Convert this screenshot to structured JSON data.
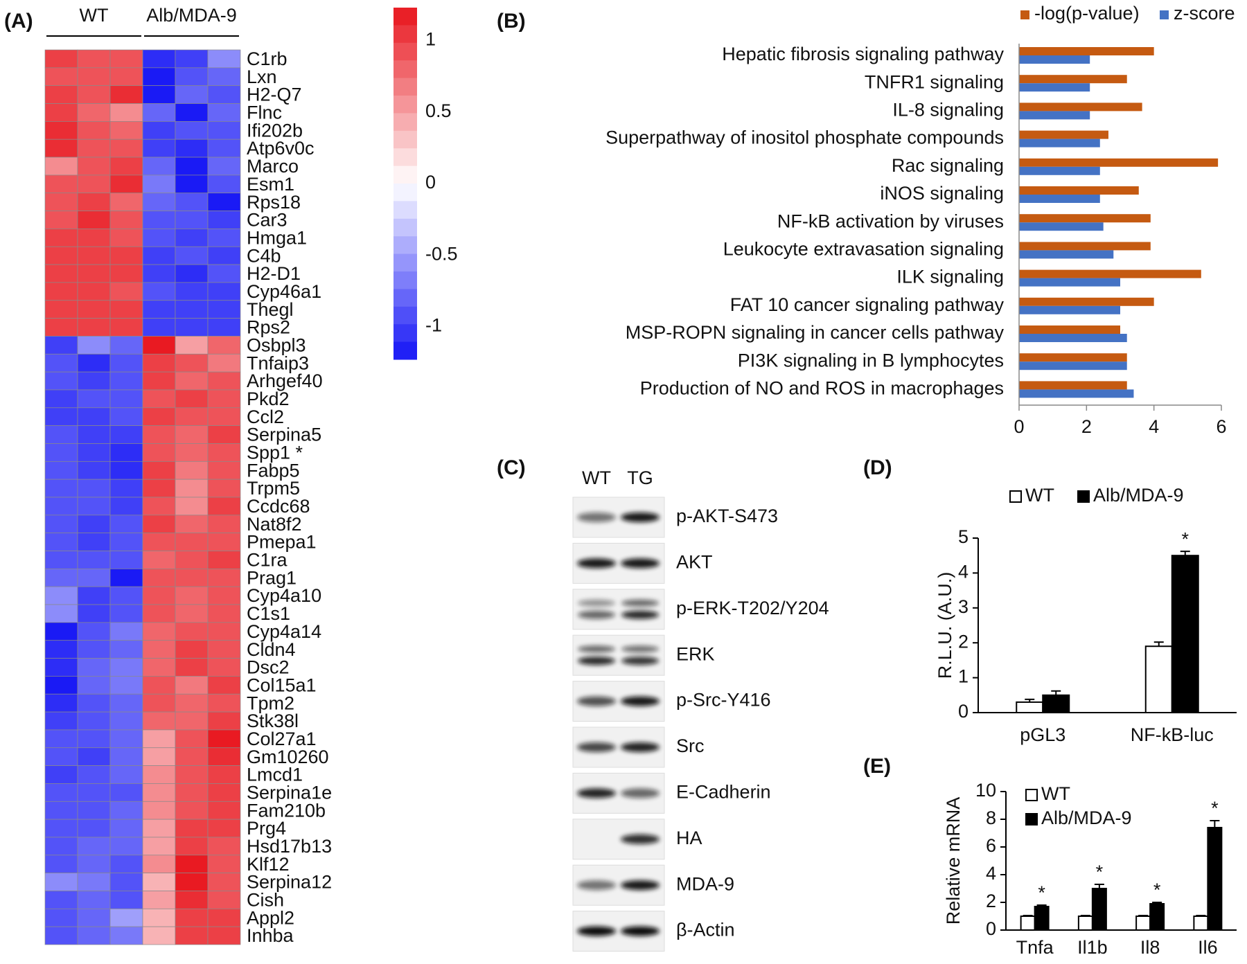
{
  "panel_labels": [
    "(A)",
    "(B)",
    "(C)",
    "(D)",
    "(E)"
  ],
  "blot": {
    "columns": [
      "WT",
      "TG"
    ],
    "rows": [
      "p-AKT-S473",
      "AKT",
      "p-ERK-T202/Y204",
      "ERK",
      "p-Src-Y416",
      "Src",
      "E-Cadherin",
      "HA",
      "MDA-9",
      "β-Actin"
    ]
  },
  "chart_data": [
    {
      "type": "heatmap",
      "column_groups": [
        "WT",
        "Alb/MDA-9"
      ],
      "rows": [
        "C1rb",
        "Lxn",
        "H2-Q7",
        "Flnc",
        "Ifi202b",
        "Atp6v0c",
        "Marco",
        "Esm1",
        "Rps18",
        "Car3",
        "Hmga1",
        "C4b",
        "H2-D1",
        "Cyp46a1",
        "Thegl",
        "Rps2",
        "Osbpl3",
        "Tnfaip3",
        "Arhgef40",
        "Pkd2",
        "Ccl2",
        "Serpina5",
        "Spp1 *",
        "Fabp5",
        "Trpm5",
        "Ccdc68",
        "Nat8f2",
        "Pmepa1",
        "C1ra",
        "Prag1",
        "Cyp4a10",
        "C1s1",
        "Cyp4a14",
        "Cldn4",
        "Dsc2",
        "Col15a1",
        "Tpm2",
        "Stk38l",
        "Col27a1",
        "Gm10260",
        "Lmcd1",
        "Serpina1e",
        "Fam210b",
        "Prg4",
        "Hsd17b13",
        "Klf12",
        "Serpina12",
        "Cish",
        "Appl2",
        "Inhba"
      ],
      "values": [
        [
          1.0,
          0.9,
          0.9,
          -1.1,
          -1.0,
          -0.6
        ],
        [
          0.9,
          0.9,
          0.9,
          -1.2,
          -0.9,
          -0.8
        ],
        [
          1.0,
          0.9,
          1.1,
          -1.2,
          -0.8,
          -0.9
        ],
        [
          1.0,
          0.8,
          0.6,
          -0.8,
          -1.2,
          -0.8
        ],
        [
          1.1,
          0.9,
          0.8,
          -1.0,
          -0.9,
          -0.9
        ],
        [
          1.1,
          0.9,
          0.9,
          -1.0,
          -1.1,
          -0.9
        ],
        [
          0.6,
          0.9,
          1.0,
          -0.8,
          -1.2,
          -0.8
        ],
        [
          0.9,
          0.9,
          1.1,
          -0.7,
          -1.2,
          -0.9
        ],
        [
          0.9,
          1.0,
          0.8,
          -0.8,
          -0.9,
          -1.2
        ],
        [
          0.9,
          1.1,
          0.9,
          -0.9,
          -0.9,
          -1.0
        ],
        [
          1.0,
          1.0,
          0.9,
          -0.9,
          -1.0,
          -0.9
        ],
        [
          1.0,
          1.0,
          1.0,
          -1.0,
          -0.9,
          -1.0
        ],
        [
          1.0,
          1.0,
          1.0,
          -1.0,
          -1.1,
          -0.9
        ],
        [
          1.0,
          1.0,
          0.9,
          -0.9,
          -1.0,
          -1.0
        ],
        [
          1.0,
          1.0,
          1.0,
          -1.0,
          -1.0,
          -1.0
        ],
        [
          1.0,
          1.0,
          1.0,
          -1.0,
          -1.0,
          -1.0
        ],
        [
          -1.0,
          -0.6,
          -0.8,
          1.2,
          0.5,
          0.8
        ],
        [
          -0.9,
          -1.1,
          -0.9,
          1.0,
          0.9,
          0.7
        ],
        [
          -0.9,
          -1.0,
          -0.9,
          1.0,
          0.8,
          0.9
        ],
        [
          -1.0,
          -0.9,
          -0.9,
          0.9,
          1.0,
          0.9
        ],
        [
          -1.0,
          -1.0,
          -0.9,
          1.0,
          0.9,
          0.9
        ],
        [
          -0.9,
          -1.0,
          -1.0,
          0.9,
          0.8,
          1.0
        ],
        [
          -0.9,
          -1.0,
          -1.1,
          0.9,
          0.8,
          0.9
        ],
        [
          -0.9,
          -1.0,
          -1.1,
          1.0,
          0.7,
          0.9
        ],
        [
          -0.9,
          -0.9,
          -1.0,
          1.0,
          0.6,
          0.9
        ],
        [
          -0.9,
          -0.9,
          -1.0,
          0.9,
          0.6,
          1.0
        ],
        [
          -0.9,
          -1.0,
          -0.9,
          1.0,
          0.8,
          0.9
        ],
        [
          -0.9,
          -1.0,
          -0.9,
          0.9,
          0.9,
          0.9
        ],
        [
          -0.9,
          -0.9,
          -0.9,
          0.8,
          0.9,
          1.0
        ],
        [
          -0.8,
          -0.8,
          -1.2,
          0.9,
          0.9,
          0.9
        ],
        [
          -0.6,
          -1.0,
          -0.9,
          0.9,
          0.8,
          0.9
        ],
        [
          -0.6,
          -1.0,
          -0.9,
          0.9,
          0.8,
          0.9
        ],
        [
          -1.2,
          -0.9,
          -0.7,
          0.8,
          0.9,
          0.9
        ],
        [
          -1.1,
          -0.9,
          -0.8,
          0.8,
          1.0,
          0.9
        ],
        [
          -1.1,
          -0.8,
          -0.7,
          0.8,
          1.0,
          0.9
        ],
        [
          -1.2,
          -0.8,
          -0.7,
          0.9,
          0.7,
          1.0
        ],
        [
          -1.1,
          -0.9,
          -0.8,
          0.9,
          0.8,
          0.9
        ],
        [
          -1.0,
          -0.9,
          -0.8,
          0.8,
          0.8,
          1.0
        ],
        [
          -0.9,
          -0.9,
          -0.8,
          0.5,
          0.9,
          1.2
        ],
        [
          -0.9,
          -1.0,
          -0.8,
          0.5,
          0.9,
          1.1
        ],
        [
          -1.0,
          -0.9,
          -0.8,
          0.6,
          0.9,
          1.0
        ],
        [
          -0.9,
          -0.9,
          -0.9,
          0.6,
          0.9,
          1.0
        ],
        [
          -0.9,
          -0.9,
          -0.8,
          0.6,
          0.9,
          1.0
        ],
        [
          -0.9,
          -0.9,
          -0.8,
          0.5,
          1.0,
          1.0
        ],
        [
          -0.9,
          -0.8,
          -0.8,
          0.5,
          1.0,
          0.9
        ],
        [
          -0.9,
          -0.8,
          -0.9,
          0.6,
          1.2,
          0.9
        ],
        [
          -0.6,
          -0.7,
          -0.9,
          0.4,
          1.2,
          0.9
        ],
        [
          -0.9,
          -0.8,
          -0.9,
          0.5,
          1.1,
          0.9
        ],
        [
          -0.9,
          -0.8,
          -0.5,
          0.4,
          1.0,
          1.0
        ],
        [
          -0.9,
          -0.8,
          -0.7,
          0.4,
          1.0,
          1.0
        ]
      ],
      "clim": [
        -1.23,
        1.23
      ],
      "cticks": [
        1,
        0.5,
        0,
        -0.5,
        -1
      ],
      "colormap": [
        "#1414f5",
        "#ffffff",
        "#e8141c"
      ]
    },
    {
      "type": "hbar",
      "categories": [
        "Hepatic fibrosis signaling pathway",
        "TNFR1 signaling",
        "IL-8 signaling",
        "Superpathway of inositol phosphate compounds",
        "Rac signaling",
        "iNOS signaling",
        "NF-kB activation by viruses",
        "Leukocyte extravasation signaling",
        "ILK signaling",
        "FAT 10 cancer signaling pathway",
        "MSP-ROPN signaling in cancer cells pathway",
        "PI3K signaling in B lymphocytes",
        "Production of NO and ROS in macrophages"
      ],
      "series": [
        {
          "name": "-log(p-value)",
          "color": "#c55a11",
          "values": [
            4.0,
            3.2,
            3.65,
            2.65,
            5.9,
            3.55,
            3.9,
            3.9,
            5.4,
            4.0,
            3.0,
            3.2,
            3.2
          ]
        },
        {
          "name": "z-score",
          "color": "#4472c4",
          "values": [
            2.1,
            2.1,
            2.1,
            2.4,
            2.4,
            2.4,
            2.5,
            2.8,
            3.0,
            3.0,
            3.2,
            3.2,
            3.4
          ]
        }
      ],
      "xlim": [
        0,
        6
      ],
      "xticks": [
        0,
        2,
        4,
        6
      ],
      "legend": "top-right"
    },
    {
      "type": "bar",
      "categories": [
        "pGL3",
        "NF-kB-luc"
      ],
      "series": [
        {
          "name": "WT",
          "color": "#ffffff",
          "values": [
            0.3,
            1.9
          ],
          "errors": [
            0.08,
            0.12
          ],
          "significance": [
            null,
            null
          ]
        },
        {
          "name": "Alb/MDA-9",
          "color": "#000000",
          "values": [
            0.5,
            4.5
          ],
          "errors": [
            0.12,
            0.12
          ],
          "significance": [
            null,
            "*"
          ]
        }
      ],
      "ylabel": "R.L.U. (A.U.)",
      "ylim": [
        0,
        5
      ],
      "yticks": [
        0,
        1,
        2,
        3,
        4,
        5
      ],
      "legend": "top"
    },
    {
      "type": "bar",
      "categories": [
        "Tnfa",
        "Il1b",
        "Il8",
        "Il6"
      ],
      "series": [
        {
          "name": "WT",
          "color": "#ffffff",
          "values": [
            1,
            1,
            1,
            1
          ],
          "errors": [
            0.05,
            0.05,
            0.05,
            0.05
          ],
          "significance": [
            null,
            null,
            null,
            null
          ]
        },
        {
          "name": "Alb/MDA-9",
          "color": "#000000",
          "values": [
            1.7,
            3.0,
            1.9,
            7.4
          ],
          "errors": [
            0.1,
            0.3,
            0.1,
            0.5
          ],
          "significance": [
            "*",
            "*",
            "*",
            "*"
          ]
        }
      ],
      "ylabel": "Relative mRNA",
      "ylim": [
        0,
        10
      ],
      "yticks": [
        0,
        2,
        4,
        6,
        8,
        10
      ],
      "legend": "top-left"
    }
  ]
}
